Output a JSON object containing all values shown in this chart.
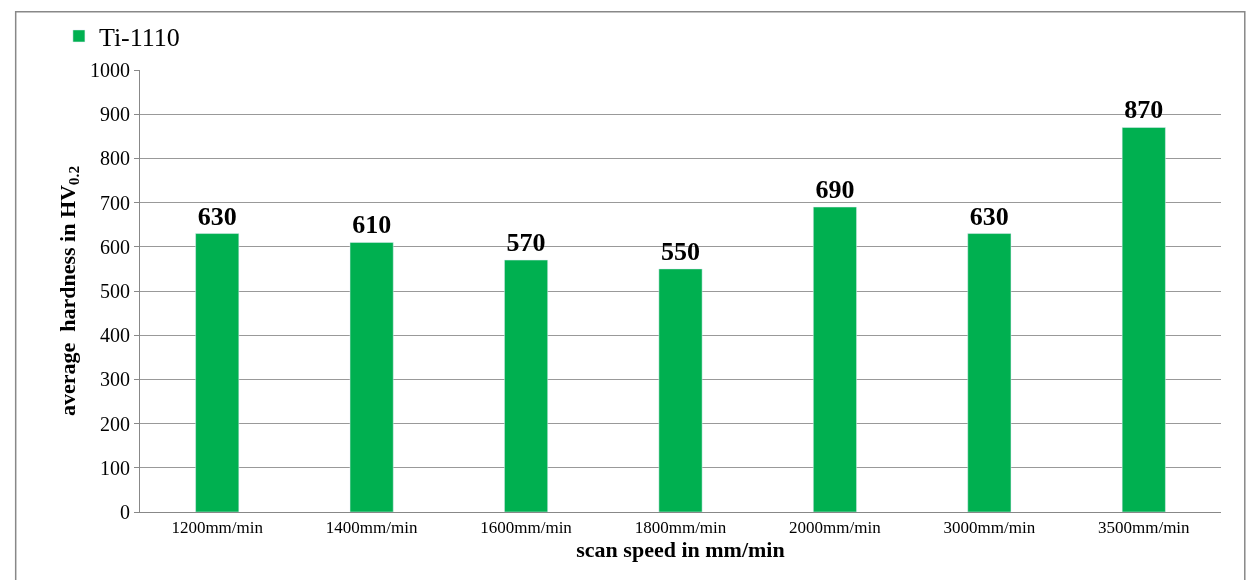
{
  "chart_data": {
    "type": "bar",
    "xlabel": "scan speed in mm/min",
    "ylabel": "average  hardness in HV$_{0.2}$",
    "categories": [
      "1200mm/min",
      "1400mm/min",
      "1600mm/min",
      "1800mm/min",
      "2000mm/min",
      "3000mm/min",
      "3500mm/min"
    ],
    "series": [
      {
        "name": "Ti-1110",
        "color": "#00b050",
        "values": [
          630,
          610,
          570,
          550,
          690,
          630,
          870
        ]
      }
    ],
    "ylim": [
      0,
      1000
    ],
    "yticks": [
      0,
      100,
      200,
      300,
      400,
      500,
      600,
      700,
      800,
      900,
      1000
    ],
    "grid": "y",
    "legend": "top left",
    "data_labels": true
  }
}
